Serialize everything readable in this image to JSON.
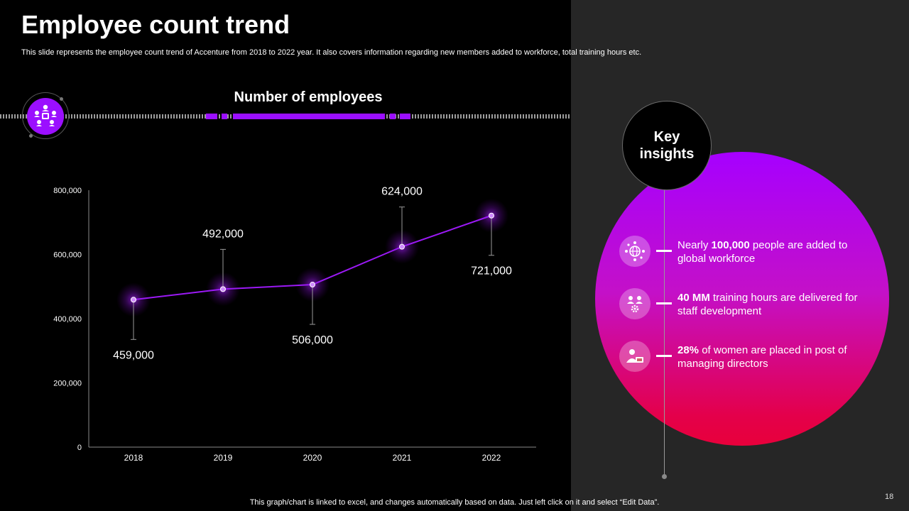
{
  "slide": {
    "title": "Employee count trend",
    "subtitle": "This slide represents the employee count trend of Accenture from 2018 to 2022 year.  It also covers information regarding new members added to workforce, total training hours etc.",
    "footer_note": "This graph/chart is linked to excel,  and changes automatically based on data. Just left click on it and select “Edit Data”.",
    "page_number": "18"
  },
  "chart_data": {
    "type": "line",
    "title": "Number of employees",
    "categories": [
      "2018",
      "2019",
      "2020",
      "2021",
      "2022"
    ],
    "values": [
      459000,
      492000,
      506000,
      624000,
      721000
    ],
    "data_labels": [
      "459,000",
      "492,000",
      "506,000",
      "624,000",
      "721,000"
    ],
    "label_positions": [
      "below",
      "above",
      "below",
      "above",
      "below"
    ],
    "ylim": [
      0,
      800000
    ],
    "y_ticks": [
      0,
      200000,
      400000,
      600000,
      800000
    ],
    "y_tick_labels": [
      "0",
      "200,000",
      "400,000",
      "600,000",
      "800,000"
    ],
    "xlabel": "",
    "ylabel": "",
    "grid": false,
    "line_color": "#9b19f5",
    "marker_fill": "#d08bff"
  },
  "insights": {
    "heading_line1": "Key",
    "heading_line2": "insights",
    "items": [
      {
        "icon": "globe-network-icon",
        "bold": "100,000",
        "pre": "Nearly ",
        "post": " people are added to global workforce"
      },
      {
        "icon": "team-training-icon",
        "bold": "40 MM",
        "pre": "",
        "post": " training hours are delivered for staff development"
      },
      {
        "icon": "manager-icon",
        "bold": "28%",
        "pre": "",
        "post": " of women are placed in post of managing directors"
      }
    ]
  },
  "colors": {
    "accent": "#9b0fff",
    "panel": "#262626",
    "circle_top": "#a600ff",
    "circle_bottom": "#e8003b"
  }
}
